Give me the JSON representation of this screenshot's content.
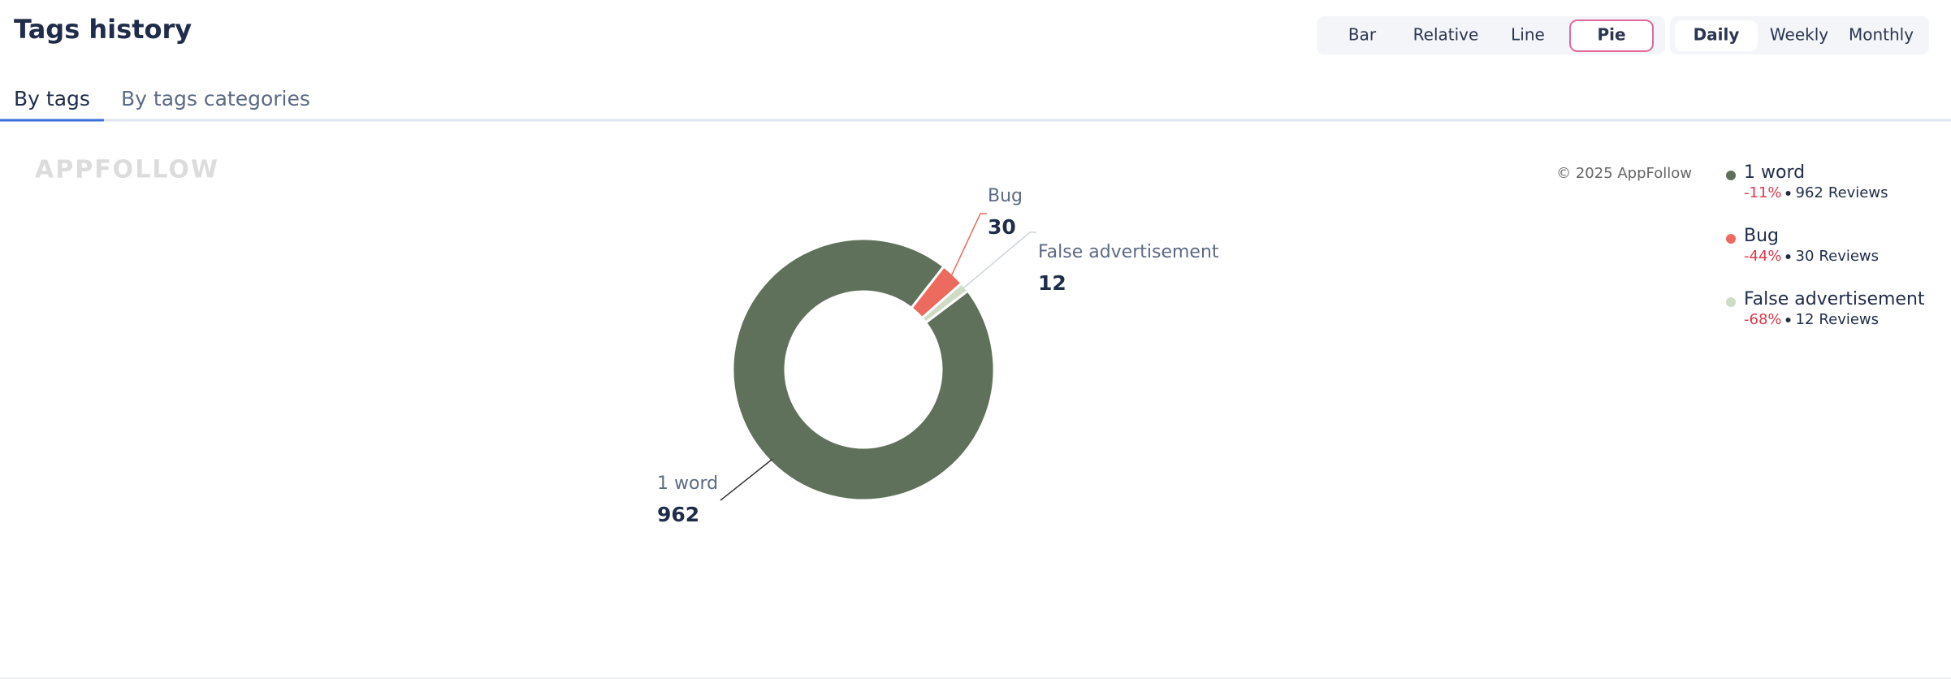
{
  "header": {
    "title": "Tags history",
    "chart_types": [
      {
        "label": "Bar",
        "active": false
      },
      {
        "label": "Relative",
        "active": false
      },
      {
        "label": "Line",
        "active": false
      },
      {
        "label": "Pie",
        "active": true
      }
    ],
    "periods": [
      {
        "label": "Daily",
        "active": true
      },
      {
        "label": "Weekly",
        "active": false
      },
      {
        "label": "Monthly",
        "active": false
      }
    ]
  },
  "tabs": [
    {
      "label": "By tags",
      "active": true
    },
    {
      "label": "By tags categories",
      "active": false
    }
  ],
  "watermark": "APPFOLLOW",
  "copyright": "© 2025 AppFollow",
  "chart_data": {
    "type": "pie",
    "donut": true,
    "categories": [
      "1 word",
      "Bug",
      "False advertisement"
    ],
    "values": [
      962,
      30,
      12
    ],
    "colors": [
      "#5f715a",
      "#ec6a5e",
      "#cfdcc5"
    ],
    "changes": [
      {
        "value": -11,
        "label": "-11%"
      },
      {
        "value": -44,
        "label": "-44%"
      },
      {
        "value": -68,
        "label": "-68%"
      }
    ],
    "legend_unit": "Reviews",
    "legend": "top-right"
  }
}
